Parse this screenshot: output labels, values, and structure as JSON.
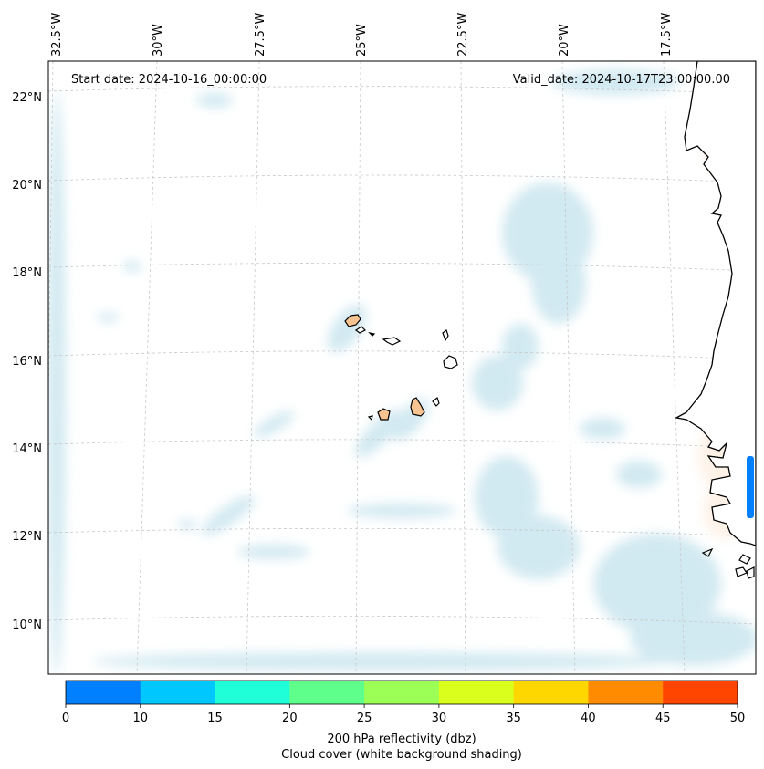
{
  "map": {
    "start_date_text": "Start date: 2024-10-16_00:00:00",
    "valid_date_text": "Valid_date: 2024-10-17T23:00:00.00",
    "lon_labels": [
      "32.5°W",
      "30°W",
      "27.5°W",
      "25°W",
      "22.5°W",
      "20°W",
      "17.5°W"
    ],
    "lat_labels": [
      "22°N",
      "20°N",
      "18°N",
      "16°N",
      "14°N",
      "12°N",
      "10°N"
    ],
    "land_color": "#f6c391",
    "cloud_color": "#add8e6",
    "coastline_color": "#000000",
    "gridline_color": "#c8c8c8"
  },
  "colorbar": {
    "colors": [
      "#007fff",
      "#00c8ff",
      "#1fffd8",
      "#5fff8c",
      "#9bff55",
      "#dbff1c",
      "#ffd700",
      "#ff8c00",
      "#ff4500"
    ],
    "ticks": [
      "0",
      "10",
      "15",
      "20",
      "25",
      "30",
      "35",
      "40",
      "45",
      "50"
    ],
    "label_line1": "200 hPa reflectivity (dbz)",
    "label_line2": "Cloud cover (white background shading)"
  }
}
